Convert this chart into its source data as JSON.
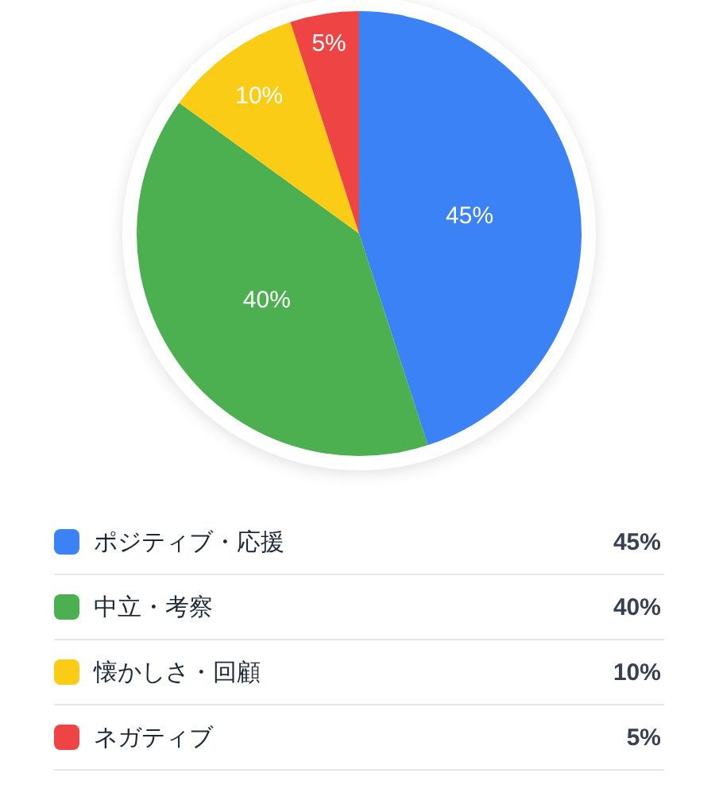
{
  "chart_data": {
    "type": "pie",
    "categories": [
      "ポジティブ・応援",
      "中立・考察",
      "懐かしさ・回顧",
      "ネガティブ"
    ],
    "values": [
      45,
      40,
      10,
      5
    ],
    "colors": [
      "#3b82f6",
      "#4caf50",
      "#facc15",
      "#ef4444"
    ],
    "value_labels": [
      "45%",
      "40%",
      "10%",
      "5%"
    ],
    "legend": "bottom"
  }
}
